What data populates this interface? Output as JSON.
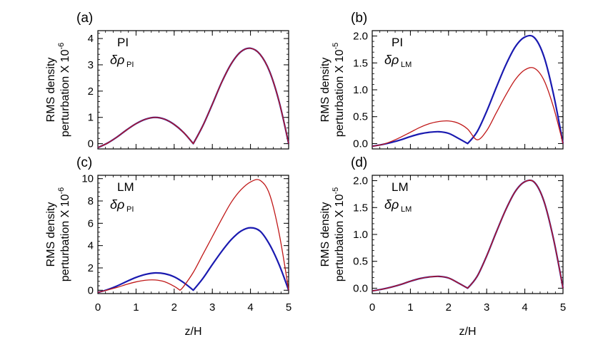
{
  "chart_data": [
    {
      "type": "line",
      "panel_label": "(a)",
      "corner_label": "PI",
      "corner_symbol": "δρ",
      "corner_subscript": "PI",
      "ylabel_line1": "RMS density",
      "ylabel_line2": "perturbation X 10",
      "ylabel_exponent": "-6",
      "xlim": [
        0,
        5
      ],
      "ylim": [
        -0.2,
        4.3
      ],
      "xticks": [
        0,
        1,
        2,
        3,
        4,
        5
      ],
      "xtick_labels": [
        "0",
        "1",
        "2",
        "3",
        "4",
        "5"
      ],
      "yticks": [
        0,
        1,
        2,
        3,
        4
      ],
      "ytick_labels": [
        "0",
        "1",
        "2",
        "3",
        "4"
      ],
      "show_xtick_labels": false,
      "xlabel": "",
      "series": [
        {
          "name": "blue",
          "color": "#1a1ab0",
          "x": [
            0,
            0.25,
            0.5,
            0.75,
            1.0,
            1.25,
            1.5,
            1.75,
            2.0,
            2.25,
            2.5,
            2.75,
            3.0,
            3.25,
            3.5,
            3.75,
            4.0,
            4.25,
            4.5,
            4.75,
            5.0
          ],
          "y": [
            -0.15,
            0.02,
            0.25,
            0.52,
            0.76,
            0.93,
            1.0,
            0.93,
            0.73,
            0.42,
            0.0,
            0.68,
            1.5,
            2.35,
            3.05,
            3.5,
            3.63,
            3.4,
            2.75,
            1.6,
            0.0
          ]
        },
        {
          "name": "red",
          "color": "#c01818",
          "x": [
            0,
            0.25,
            0.5,
            0.75,
            1.0,
            1.25,
            1.5,
            1.75,
            2.0,
            2.25,
            2.5,
            2.75,
            3.0,
            3.25,
            3.5,
            3.75,
            4.0,
            4.25,
            4.5,
            4.75,
            5.0
          ],
          "y": [
            -0.15,
            0.02,
            0.25,
            0.52,
            0.76,
            0.93,
            1.0,
            0.93,
            0.73,
            0.42,
            0.0,
            0.68,
            1.5,
            2.35,
            3.05,
            3.5,
            3.63,
            3.4,
            2.75,
            1.6,
            0.0
          ]
        }
      ]
    },
    {
      "type": "line",
      "panel_label": "(b)",
      "corner_label": "PI",
      "corner_symbol": "δρ",
      "corner_subscript": "LM",
      "ylabel_line1": "RMS density",
      "ylabel_line2": "perturbation X 10",
      "ylabel_exponent": "-5",
      "xlim": [
        0,
        5
      ],
      "ylim": [
        -0.1,
        2.1
      ],
      "xticks": [
        0,
        1,
        2,
        3,
        4,
        5
      ],
      "xtick_labels": [
        "0",
        "1",
        "2",
        "3",
        "4",
        "5"
      ],
      "yticks": [
        0.0,
        0.5,
        1.0,
        1.5,
        2.0
      ],
      "ytick_labels": [
        "0.0",
        "0.5",
        "1.0",
        "1.5",
        "2.0"
      ],
      "show_xtick_labels": false,
      "xlabel": "",
      "series": [
        {
          "name": "blue",
          "color": "#1a1ab0",
          "x": [
            0,
            0.25,
            0.5,
            0.75,
            1.0,
            1.25,
            1.5,
            1.75,
            2.0,
            2.25,
            2.5,
            2.75,
            3.0,
            3.25,
            3.5,
            3.75,
            4.0,
            4.25,
            4.5,
            4.75,
            5.0
          ],
          "y": [
            -0.05,
            -0.02,
            0.02,
            0.07,
            0.13,
            0.18,
            0.21,
            0.22,
            0.19,
            0.1,
            0.0,
            0.22,
            0.6,
            1.04,
            1.46,
            1.8,
            1.98,
            1.97,
            1.62,
            0.92,
            0.0
          ]
        },
        {
          "name": "red",
          "color": "#c01818",
          "x": [
            0,
            0.25,
            0.5,
            0.75,
            1.0,
            1.25,
            1.5,
            1.75,
            2.0,
            2.25,
            2.5,
            2.75,
            3.0,
            3.25,
            3.5,
            3.75,
            4.0,
            4.25,
            4.5,
            4.75,
            5.0
          ],
          "y": [
            -0.05,
            -0.02,
            0.04,
            0.12,
            0.21,
            0.3,
            0.37,
            0.41,
            0.42,
            0.38,
            0.27,
            0.07,
            0.24,
            0.57,
            0.9,
            1.19,
            1.37,
            1.4,
            1.18,
            0.68,
            0.0
          ]
        }
      ]
    },
    {
      "type": "line",
      "panel_label": "(c)",
      "corner_label": "LM",
      "corner_symbol": "δρ",
      "corner_subscript": "PI",
      "ylabel_line1": "RMS density",
      "ylabel_line2": "perturbation X 10",
      "ylabel_exponent": "-6",
      "xlim": [
        0,
        5
      ],
      "ylim": [
        -0.3,
        10.3
      ],
      "xticks": [
        0,
        1,
        2,
        3,
        4,
        5
      ],
      "xtick_labels": [
        "0",
        "1",
        "2",
        "3",
        "4",
        "5"
      ],
      "yticks": [
        0,
        2,
        4,
        6,
        8,
        10
      ],
      "ytick_labels": [
        "0",
        "2",
        "4",
        "6",
        "8",
        "10"
      ],
      "show_xtick_labels": true,
      "xlabel": "z/H",
      "series": [
        {
          "name": "blue",
          "color": "#1a1ab0",
          "x": [
            0,
            0.25,
            0.5,
            0.75,
            1.0,
            1.25,
            1.5,
            1.75,
            2.0,
            2.25,
            2.5,
            2.75,
            3.0,
            3.25,
            3.5,
            3.75,
            4.0,
            4.25,
            4.5,
            4.75,
            5.0
          ],
          "y": [
            -0.2,
            0.05,
            0.38,
            0.78,
            1.15,
            1.42,
            1.55,
            1.48,
            1.2,
            0.68,
            0.0,
            1.05,
            2.3,
            3.5,
            4.55,
            5.3,
            5.6,
            5.3,
            4.1,
            2.3,
            0.0
          ]
        },
        {
          "name": "red",
          "color": "#c01818",
          "x": [
            0,
            0.25,
            0.5,
            0.75,
            1.0,
            1.25,
            1.5,
            1.75,
            2.0,
            2.15,
            2.25,
            2.5,
            2.75,
            3.0,
            3.25,
            3.5,
            3.75,
            4.0,
            4.25,
            4.5,
            4.75,
            5.0
          ],
          "y": [
            -0.2,
            0.02,
            0.25,
            0.52,
            0.75,
            0.9,
            0.92,
            0.76,
            0.35,
            0.0,
            0.35,
            1.6,
            3.2,
            4.8,
            6.4,
            7.9,
            9.0,
            9.7,
            9.85,
            8.6,
            5.1,
            0.0
          ]
        }
      ]
    },
    {
      "type": "line",
      "panel_label": "(d)",
      "corner_label": "LM",
      "corner_symbol": "δρ",
      "corner_subscript": "LM",
      "ylabel_line1": "RMS density",
      "ylabel_line2": "perturbation X 10",
      "ylabel_exponent": "-5",
      "xlim": [
        0,
        5
      ],
      "ylim": [
        -0.1,
        2.1
      ],
      "xticks": [
        0,
        1,
        2,
        3,
        4,
        5
      ],
      "xtick_labels": [
        "0",
        "1",
        "2",
        "3",
        "4",
        "5"
      ],
      "yticks": [
        0.0,
        0.5,
        1.0,
        1.5,
        2.0
      ],
      "ytick_labels": [
        "0.0",
        "0.5",
        "1.0",
        "1.5",
        "2.0"
      ],
      "show_xtick_labels": true,
      "xlabel": "z/H",
      "series": [
        {
          "name": "blue",
          "color": "#1a1ab0",
          "x": [
            0,
            0.25,
            0.5,
            0.75,
            1.0,
            1.25,
            1.5,
            1.75,
            2.0,
            2.25,
            2.5,
            2.75,
            3.0,
            3.25,
            3.5,
            3.75,
            4.0,
            4.25,
            4.5,
            4.75,
            5.0
          ],
          "y": [
            -0.05,
            -0.02,
            0.02,
            0.07,
            0.13,
            0.18,
            0.21,
            0.22,
            0.19,
            0.1,
            0.0,
            0.22,
            0.6,
            1.04,
            1.46,
            1.8,
            1.98,
            1.97,
            1.62,
            0.92,
            0.0
          ]
        },
        {
          "name": "red",
          "color": "#c01818",
          "x": [
            0,
            0.25,
            0.5,
            0.75,
            1.0,
            1.25,
            1.5,
            1.75,
            2.0,
            2.25,
            2.5,
            2.75,
            3.0,
            3.25,
            3.5,
            3.75,
            4.0,
            4.25,
            4.5,
            4.75,
            5.0
          ],
          "y": [
            -0.05,
            -0.02,
            0.02,
            0.07,
            0.13,
            0.18,
            0.21,
            0.22,
            0.19,
            0.1,
            0.0,
            0.22,
            0.6,
            1.04,
            1.46,
            1.8,
            1.98,
            1.97,
            1.62,
            0.92,
            0.0
          ]
        }
      ]
    }
  ]
}
